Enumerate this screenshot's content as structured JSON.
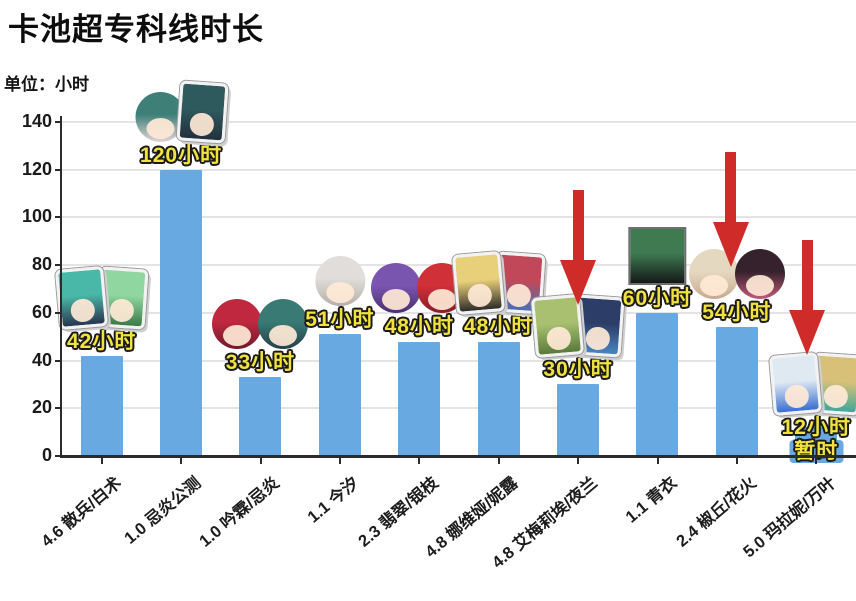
{
  "title": "卡池超专科线时长",
  "unit_label": "单位：小时",
  "colors": {
    "bar": "#69a9e1",
    "arrow": "#cf2b28",
    "value_text": "#f2e33c",
    "value_outline": "#1a1a1a",
    "grid": "#e4e4e4",
    "axis": "#2b2b2b",
    "background": "#ffffff"
  },
  "chart_data": {
    "type": "bar",
    "title": "卡池超专科线时长",
    "ylabel": "单位：小时",
    "unit": "小时",
    "ylim": [
      0,
      140
    ],
    "yticks": [
      0,
      20,
      40,
      60,
      80,
      100,
      120,
      140
    ],
    "grid": true,
    "legend": "none",
    "categories": [
      "4.6 散兵/白术",
      "1.0 忌炎公测",
      "1.0 吟霖/忌炎",
      "1.1 今汐",
      "2.3 翡翠/银枝",
      "4.8 娜维娅/妮露",
      "4.8 艾梅莉埃/夜兰",
      "1.1 青衣",
      "2.4 椒丘/花火",
      "5.0 玛拉妮/万叶"
    ],
    "values": [
      42,
      120,
      33,
      51,
      48,
      48,
      30,
      60,
      54,
      12
    ],
    "value_labels": [
      "42小时",
      "120小时",
      "33小时",
      "51小时",
      "48小时",
      "48小时",
      "30小时",
      "60小时",
      "54小时",
      "12小时"
    ],
    "annotations": {
      "arrow_indices": [
        6,
        8,
        9
      ],
      "extra_label": {
        "index": 9,
        "text": "暂时"
      }
    },
    "avatars": [
      [
        {
          "name": "散兵",
          "shape": "card",
          "c1": "#4ab8a8",
          "c2": "#273650"
        },
        {
          "name": "白术",
          "shape": "card",
          "c1": "#8fd6a0",
          "c2": "#3a7a46"
        }
      ],
      [
        {
          "name": "忌炎",
          "shape": "round",
          "c1": "#3e8078",
          "c2": "#e4d4d8"
        },
        {
          "name": "忌炎",
          "shape": "card",
          "c1": "#2e5a5e",
          "c2": "#22303e"
        }
      ],
      [
        {
          "name": "吟霖",
          "shape": "round",
          "c1": "#c02840",
          "c2": "#701a2a"
        },
        {
          "name": "忌炎",
          "shape": "round",
          "c1": "#3a7a74",
          "c2": "#24404a"
        }
      ],
      [
        {
          "name": "今汐",
          "shape": "round",
          "c1": "#e0ddda",
          "c2": "#b5b0a8"
        }
      ],
      [
        {
          "name": "翡翠",
          "shape": "round",
          "c1": "#7a55b0",
          "c2": "#4a3070"
        },
        {
          "name": "银枝",
          "shape": "round",
          "c1": "#d03038",
          "c2": "#8a1c28"
        }
      ],
      [
        {
          "name": "娜维娅",
          "shape": "card",
          "c1": "#e8cf7a",
          "c2": "#2e2c2a"
        },
        {
          "name": "妮露",
          "shape": "card",
          "c1": "#c04858",
          "c2": "#4a6fb5"
        }
      ],
      [
        {
          "name": "艾梅莉埃",
          "shape": "card",
          "c1": "#a8c070",
          "c2": "#5a7a3a"
        },
        {
          "name": "夜兰",
          "shape": "card",
          "c1": "#2c3e68",
          "c2": "#4a84c0"
        }
      ],
      [
        {
          "name": "青衣",
          "shape": "square",
          "c1": "#3f7a50",
          "c2": "#14181a"
        }
      ],
      [
        {
          "name": "椒丘",
          "shape": "round",
          "c1": "#e5d8c0",
          "c2": "#c8a890"
        },
        {
          "name": "花火",
          "shape": "round",
          "c1": "#35222c",
          "c2": "#c05a78"
        }
      ],
      [
        {
          "name": "玛拉妮",
          "shape": "card",
          "c1": "#dfe9f2",
          "c2": "#3a6fd0"
        },
        {
          "name": "万叶",
          "shape": "card",
          "c1": "#d8c078",
          "c2": "#3fa89a"
        }
      ]
    ]
  }
}
